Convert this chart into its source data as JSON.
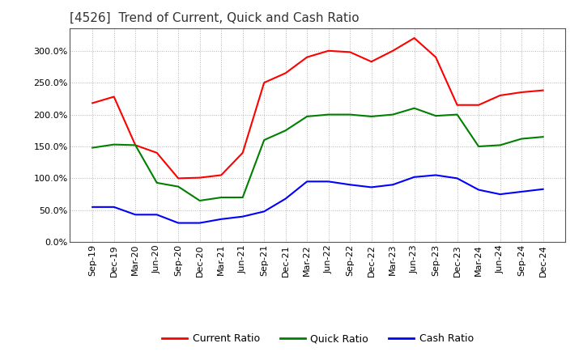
{
  "title": "[4526]  Trend of Current, Quick and Cash Ratio",
  "x_labels": [
    "Sep-19",
    "Dec-19",
    "Mar-20",
    "Jun-20",
    "Sep-20",
    "Dec-20",
    "Mar-21",
    "Jun-21",
    "Sep-21",
    "Dec-21",
    "Mar-22",
    "Jun-22",
    "Sep-22",
    "Dec-22",
    "Mar-23",
    "Jun-23",
    "Sep-23",
    "Dec-23",
    "Mar-24",
    "Jun-24",
    "Sep-24",
    "Dec-24"
  ],
  "current_ratio": [
    218,
    228,
    152,
    140,
    100,
    101,
    105,
    140,
    250,
    265,
    290,
    300,
    298,
    283,
    300,
    320,
    290,
    215,
    215,
    230,
    235,
    238
  ],
  "quick_ratio": [
    148,
    153,
    152,
    93,
    87,
    65,
    70,
    70,
    160,
    175,
    197,
    200,
    200,
    197,
    200,
    210,
    198,
    200,
    150,
    152,
    162,
    165
  ],
  "cash_ratio": [
    55,
    55,
    43,
    43,
    30,
    30,
    36,
    40,
    48,
    68,
    95,
    95,
    90,
    86,
    90,
    102,
    105,
    100,
    82,
    75,
    79,
    83
  ],
  "current_color": "#FF0000",
  "quick_color": "#008000",
  "cash_color": "#0000FF",
  "ylim": [
    0,
    335
  ],
  "yticks": [
    0,
    50,
    100,
    150,
    200,
    250,
    300
  ],
  "background_color": "#FFFFFF",
  "grid_color": "#AAAAAA",
  "title_fontsize": 11,
  "tick_fontsize": 8,
  "legend_fontsize": 9,
  "linewidth": 1.5
}
